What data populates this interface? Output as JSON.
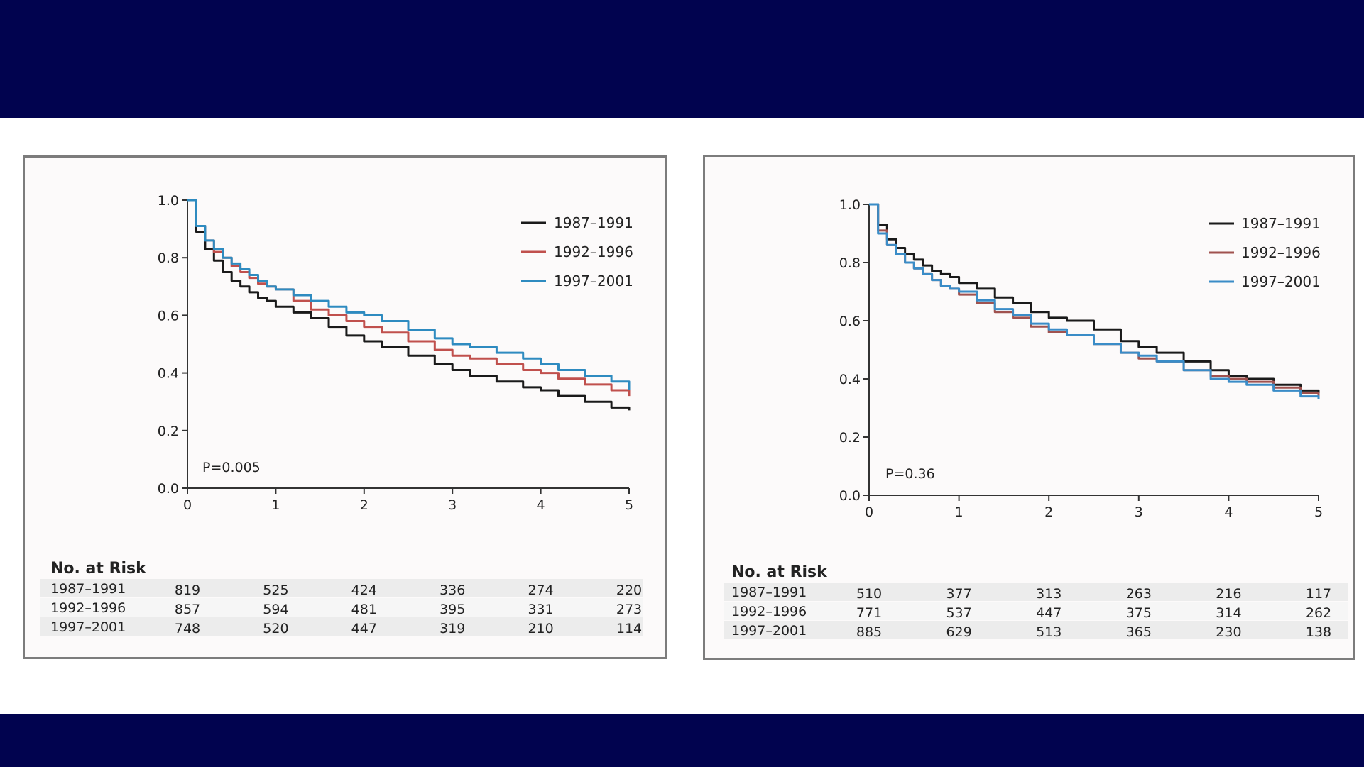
{
  "chart_data": [
    {
      "type": "line",
      "title": "",
      "xlabel": "",
      "ylabel": "",
      "xlim": [
        0,
        5
      ],
      "ylim": [
        0,
        1
      ],
      "x_ticks": [
        "0",
        "1",
        "2",
        "3",
        "4",
        "5"
      ],
      "y_ticks": [
        "0.0",
        "0.2",
        "0.4",
        "0.6",
        "0.8",
        "1.0"
      ],
      "legend_position": "top-right",
      "annotation": "P=0.005",
      "series": [
        {
          "name": "1987–1991",
          "color": "#1a1a1a",
          "x": [
            0,
            0.1,
            0.2,
            0.3,
            0.4,
            0.5,
            0.6,
            0.7,
            0.8,
            0.9,
            1.0,
            1.2,
            1.4,
            1.6,
            1.8,
            2.0,
            2.2,
            2.5,
            2.8,
            3.0,
            3.2,
            3.5,
            3.8,
            4.0,
            4.2,
            4.5,
            4.8,
            5.0
          ],
          "y": [
            1.0,
            0.89,
            0.83,
            0.79,
            0.75,
            0.72,
            0.7,
            0.68,
            0.66,
            0.65,
            0.63,
            0.61,
            0.59,
            0.56,
            0.53,
            0.51,
            0.49,
            0.46,
            0.43,
            0.41,
            0.39,
            0.37,
            0.35,
            0.34,
            0.32,
            0.3,
            0.28,
            0.27
          ]
        },
        {
          "name": "1992–1996",
          "color": "#c0504d",
          "x": [
            0,
            0.1,
            0.2,
            0.3,
            0.4,
            0.5,
            0.6,
            0.7,
            0.8,
            0.9,
            1.0,
            1.2,
            1.4,
            1.6,
            1.8,
            2.0,
            2.2,
            2.5,
            2.8,
            3.0,
            3.2,
            3.5,
            3.8,
            4.0,
            4.2,
            4.5,
            4.8,
            5.0
          ],
          "y": [
            1.0,
            0.91,
            0.86,
            0.82,
            0.8,
            0.77,
            0.75,
            0.73,
            0.71,
            0.7,
            0.69,
            0.65,
            0.62,
            0.6,
            0.58,
            0.56,
            0.54,
            0.51,
            0.48,
            0.46,
            0.45,
            0.43,
            0.41,
            0.4,
            0.38,
            0.36,
            0.34,
            0.32
          ]
        },
        {
          "name": "1997–2001",
          "color": "#2e8bc0",
          "x": [
            0,
            0.1,
            0.2,
            0.3,
            0.4,
            0.5,
            0.6,
            0.7,
            0.8,
            0.9,
            1.0,
            1.2,
            1.4,
            1.6,
            1.8,
            2.0,
            2.2,
            2.5,
            2.8,
            3.0,
            3.2,
            3.5,
            3.8,
            4.0,
            4.2,
            4.5,
            4.8,
            5.0
          ],
          "y": [
            1.0,
            0.91,
            0.86,
            0.83,
            0.8,
            0.78,
            0.76,
            0.74,
            0.72,
            0.7,
            0.69,
            0.67,
            0.65,
            0.63,
            0.61,
            0.6,
            0.58,
            0.55,
            0.52,
            0.5,
            0.49,
            0.47,
            0.45,
            0.43,
            0.41,
            0.39,
            0.37,
            0.34
          ]
        }
      ],
      "risk_table": {
        "title": "No. at Risk",
        "time_points": [
          0,
          1,
          2,
          3,
          4,
          5
        ],
        "rows": [
          {
            "label": "1987–1991",
            "values": [
              "819",
              "525",
              "424",
              "336",
              "274",
              "220"
            ]
          },
          {
            "label": "1992–1996",
            "values": [
              "857",
              "594",
              "481",
              "395",
              "331",
              "273"
            ]
          },
          {
            "label": "1997–2001",
            "values": [
              "748",
              "520",
              "447",
              "319",
              "210",
              "114"
            ]
          }
        ]
      }
    },
    {
      "type": "line",
      "title": "",
      "xlabel": "",
      "ylabel": "",
      "xlim": [
        0,
        5
      ],
      "ylim": [
        0,
        1
      ],
      "x_ticks": [
        "0",
        "1",
        "2",
        "3",
        "4",
        "5"
      ],
      "y_ticks": [
        "0.0",
        "0.2",
        "0.4",
        "0.6",
        "0.8",
        "1.0"
      ],
      "legend_position": "top-right",
      "annotation": "P=0.36",
      "series": [
        {
          "name": "1987–1991",
          "color": "#1a1a1a",
          "x": [
            0,
            0.1,
            0.2,
            0.3,
            0.4,
            0.5,
            0.6,
            0.7,
            0.8,
            0.9,
            1.0,
            1.2,
            1.4,
            1.6,
            1.8,
            2.0,
            2.2,
            2.5,
            2.8,
            3.0,
            3.2,
            3.5,
            3.8,
            4.0,
            4.2,
            4.5,
            4.8,
            5.0
          ],
          "y": [
            1.0,
            0.93,
            0.88,
            0.85,
            0.83,
            0.81,
            0.79,
            0.77,
            0.76,
            0.75,
            0.73,
            0.71,
            0.68,
            0.66,
            0.63,
            0.61,
            0.6,
            0.57,
            0.53,
            0.51,
            0.49,
            0.46,
            0.43,
            0.41,
            0.4,
            0.38,
            0.36,
            0.34
          ]
        },
        {
          "name": "1992–1996",
          "color": "#a0524f",
          "x": [
            0,
            0.1,
            0.2,
            0.3,
            0.4,
            0.5,
            0.6,
            0.7,
            0.8,
            0.9,
            1.0,
            1.2,
            1.4,
            1.6,
            1.8,
            2.0,
            2.2,
            2.5,
            2.8,
            3.0,
            3.2,
            3.5,
            3.8,
            4.0,
            4.2,
            4.5,
            4.8,
            5.0
          ],
          "y": [
            1.0,
            0.91,
            0.86,
            0.83,
            0.8,
            0.78,
            0.76,
            0.74,
            0.72,
            0.71,
            0.69,
            0.66,
            0.63,
            0.61,
            0.58,
            0.56,
            0.55,
            0.52,
            0.49,
            0.47,
            0.46,
            0.43,
            0.41,
            0.4,
            0.39,
            0.37,
            0.35,
            0.33
          ]
        },
        {
          "name": "1997–2001",
          "color": "#3a8cc7",
          "x": [
            0,
            0.1,
            0.2,
            0.3,
            0.4,
            0.5,
            0.6,
            0.7,
            0.8,
            0.9,
            1.0,
            1.2,
            1.4,
            1.6,
            1.8,
            2.0,
            2.2,
            2.5,
            2.8,
            3.0,
            3.2,
            3.5,
            3.8,
            4.0,
            4.2,
            4.5,
            4.8,
            5.0
          ],
          "y": [
            1.0,
            0.9,
            0.86,
            0.83,
            0.8,
            0.78,
            0.76,
            0.74,
            0.72,
            0.71,
            0.7,
            0.67,
            0.64,
            0.62,
            0.59,
            0.57,
            0.55,
            0.52,
            0.49,
            0.48,
            0.46,
            0.43,
            0.4,
            0.39,
            0.38,
            0.36,
            0.34,
            0.33
          ]
        }
      ],
      "risk_table": {
        "title": "No. at Risk",
        "time_points": [
          0,
          1,
          2,
          3,
          4,
          5
        ],
        "rows": [
          {
            "label": "1987–1991",
            "values": [
              "510",
              "377",
              "313",
              "263",
              "216",
              "117"
            ]
          },
          {
            "label": "1992–1996",
            "values": [
              "771",
              "537",
              "447",
              "375",
              "314",
              "262"
            ]
          },
          {
            "label": "1997–2001",
            "values": [
              "885",
              "629",
              "513",
              "365",
              "230",
              "138"
            ]
          }
        ]
      }
    }
  ]
}
